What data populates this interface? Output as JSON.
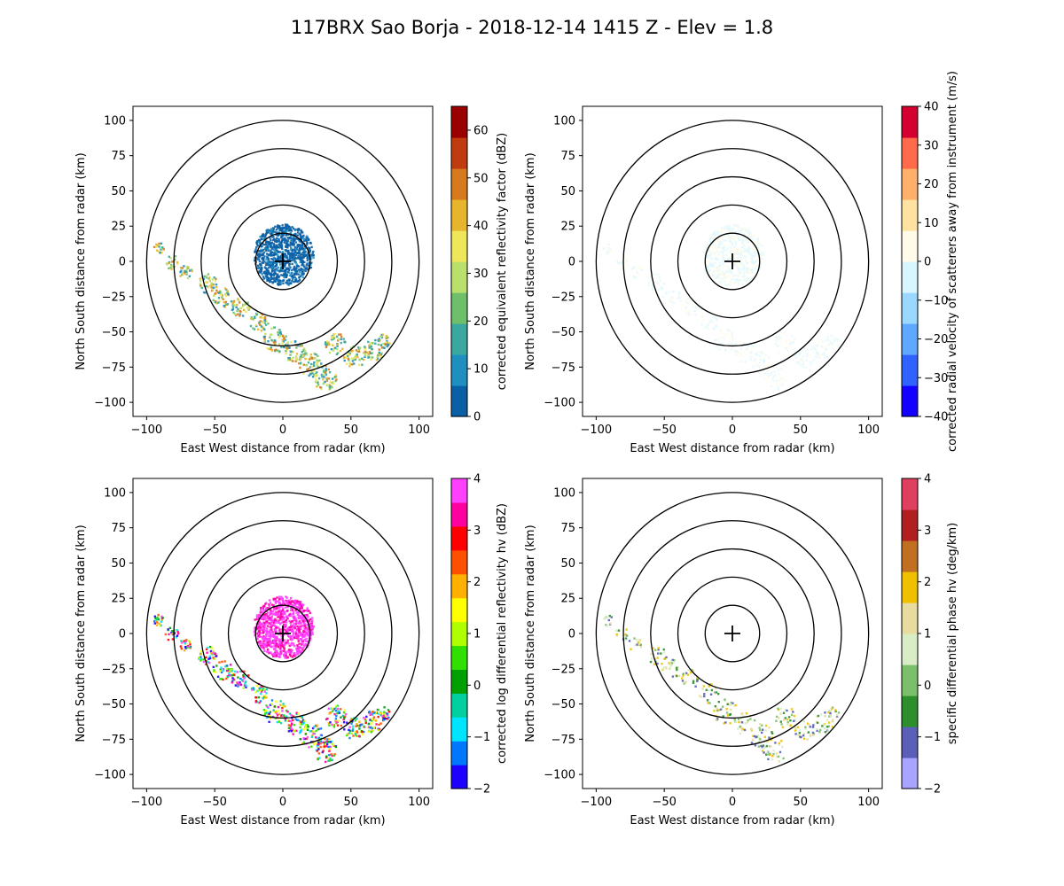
{
  "figure": {
    "title": "117BRX Sao Borja - 2018-12-14 1415 Z -  Elev = 1.8"
  },
  "chart_data": [
    {
      "type": "radar-ppi",
      "xlabel": "East West distance from radar (km)",
      "ylabel": "North South distance from radar (km)",
      "xlim": [
        -110,
        110
      ],
      "ylim": [
        -110,
        110
      ],
      "xticks": [
        -100,
        -50,
        0,
        50,
        100
      ],
      "yticks": [
        -100,
        -75,
        -50,
        -25,
        0,
        25,
        50,
        75,
        100
      ],
      "range_rings_km": [
        20,
        40,
        60,
        80,
        100
      ],
      "colorbar": {
        "label": "corrected equivalent reflectivity factor (dBZ)",
        "range": [
          0,
          65
        ],
        "ticks": [
          0,
          10,
          20,
          30,
          40,
          50,
          60
        ],
        "colors": [
          "#0b5fa5",
          "#1f8fbf",
          "#3aa8a0",
          "#6fbf6a",
          "#b9e06a",
          "#f0e65a",
          "#e7b52c",
          "#d77a1e",
          "#c03c10",
          "#9a0000"
        ]
      }
    },
    {
      "type": "radar-ppi",
      "xlabel": "East West distance from radar (km)",
      "ylabel": "North South distance from radar (km)",
      "xlim": [
        -110,
        110
      ],
      "ylim": [
        -110,
        110
      ],
      "xticks": [
        -100,
        -50,
        0,
        50,
        100
      ],
      "yticks": [
        -100,
        -75,
        -50,
        -25,
        0,
        25,
        50,
        75,
        100
      ],
      "range_rings_km": [
        20,
        40,
        60,
        80,
        100
      ],
      "colorbar": {
        "label": "corrected radial velocity of scatterers away from instrument (m/s)",
        "range": [
          -40,
          40
        ],
        "ticks": [
          -40,
          -30,
          -20,
          -10,
          0,
          10,
          20,
          30,
          40
        ],
        "colors": [
          "#1400ff",
          "#2f62ff",
          "#5fa8ff",
          "#9ad8ff",
          "#d8f6ff",
          "#fffbe8",
          "#ffe2a0",
          "#ffb06a",
          "#ff6a4a",
          "#d40030"
        ]
      }
    },
    {
      "type": "radar-ppi",
      "xlabel": "East West distance from radar (km)",
      "ylabel": "North South distance from radar (km)",
      "xlim": [
        -110,
        110
      ],
      "ylim": [
        -110,
        110
      ],
      "xticks": [
        -100,
        -50,
        0,
        50,
        100
      ],
      "yticks": [
        -100,
        -75,
        -50,
        -25,
        0,
        25,
        50,
        75,
        100
      ],
      "range_rings_km": [
        20,
        40,
        60,
        80,
        100
      ],
      "colorbar": {
        "label": "corrected log differential reflectivity hv (dBZ)",
        "range": [
          -2,
          4
        ],
        "ticks": [
          -2,
          -1,
          0,
          1,
          2,
          3,
          4
        ],
        "colors": [
          "#1e00ff",
          "#0077ff",
          "#00e5ff",
          "#00d0a0",
          "#00a000",
          "#30e000",
          "#b0ff00",
          "#ffff00",
          "#ffb000",
          "#ff5000",
          "#ff0000",
          "#ff00a0",
          "#ff40ff"
        ]
      }
    },
    {
      "type": "radar-ppi",
      "xlabel": "East West distance from radar (km)",
      "ylabel": "North South distance from radar (km)",
      "xlim": [
        -110,
        110
      ],
      "ylim": [
        -110,
        110
      ],
      "xticks": [
        -100,
        -50,
        0,
        50,
        100
      ],
      "yticks": [
        -100,
        -75,
        -50,
        -25,
        0,
        25,
        50,
        75,
        100
      ],
      "range_rings_km": [
        20,
        40,
        60,
        80,
        100
      ],
      "colorbar": {
        "label": "specific differential phase hv (deg/km)",
        "range": [
          -2,
          4
        ],
        "ticks": [
          -2,
          -1,
          0,
          1,
          2,
          3,
          4
        ],
        "colors": [
          "#a9a4ff",
          "#5b5fb8",
          "#2c8f2c",
          "#7cbf6a",
          "#d8ecc6",
          "#e8dba0",
          "#f0c000",
          "#c07020",
          "#b02020",
          "#e04060"
        ]
      }
    }
  ]
}
